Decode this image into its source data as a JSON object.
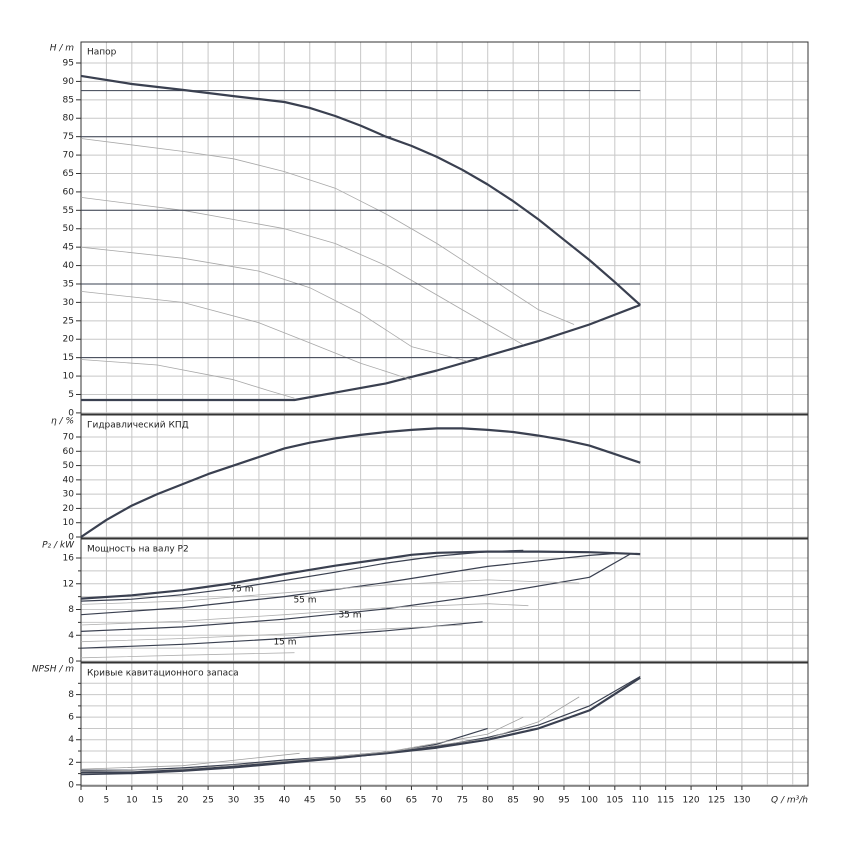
{
  "chart_data": [
    {
      "type": "line",
      "ylabel": "H / m",
      "title": "Напор",
      "ylim": [
        -0.3,
        100.7
      ],
      "yticks": [
        0,
        5,
        10,
        15,
        20,
        25,
        30,
        35,
        40,
        45,
        50,
        55,
        60,
        65,
        70,
        75,
        80,
        85,
        90,
        95
      ],
      "grid": true,
      "series": [
        {
          "style": "thick",
          "color": "#3a4050",
          "x": [
            0,
            10,
            20,
            30,
            40,
            45,
            50,
            55,
            60,
            65,
            70,
            75,
            80,
            85,
            90,
            95,
            100,
            105,
            110
          ],
          "values": [
            91.5,
            89.3,
            87.7,
            86,
            84.4,
            82.8,
            80.6,
            78,
            75,
            72.5,
            69.5,
            66,
            62,
            57.5,
            52.5,
            47,
            41.5,
            35.5,
            29.3
          ]
        },
        {
          "style": "thick",
          "color": "#3a4050",
          "x": [
            0,
            42,
            50,
            60,
            70,
            80,
            90,
            100,
            110
          ],
          "values": [
            3.5,
            3.5,
            5.5,
            8,
            11.5,
            15.5,
            19.5,
            24,
            29.3
          ]
        },
        {
          "style": "thin",
          "color": "#a8a8a8",
          "x": [
            0,
            20,
            30,
            40,
            50,
            60,
            70,
            80,
            90,
            97
          ],
          "values": [
            74.5,
            71,
            69,
            65.5,
            61,
            54,
            46,
            37,
            28,
            24
          ]
        },
        {
          "style": "thin",
          "color": "#a8a8a8",
          "x": [
            0,
            20,
            40,
            50,
            60,
            70,
            80,
            87
          ],
          "values": [
            58.5,
            55,
            50,
            46,
            40,
            32,
            24,
            18.5
          ]
        },
        {
          "style": "thin",
          "color": "#a8a8a8",
          "x": [
            0,
            20,
            35,
            45,
            55,
            65,
            76
          ],
          "values": [
            45,
            42,
            38.5,
            34,
            27,
            18,
            14
          ]
        },
        {
          "style": "thin",
          "color": "#a8a8a8",
          "x": [
            0,
            20,
            35,
            45,
            55,
            65
          ],
          "values": [
            33,
            30,
            24.5,
            19,
            13.5,
            9
          ]
        },
        {
          "style": "thin",
          "color": "#a8a8a8",
          "x": [
            0,
            15,
            30,
            37,
            42
          ],
          "values": [
            14.5,
            13,
            9,
            6,
            4
          ]
        },
        {
          "style": "rule",
          "color": "#3a4050",
          "x": [
            0,
            78
          ],
          "values": [
            15,
            15
          ]
        },
        {
          "style": "rule",
          "color": "#3a4050",
          "x": [
            0,
            110
          ],
          "values": [
            35,
            35
          ]
        },
        {
          "style": "rule",
          "color": "#3a4050",
          "x": [
            0,
            86
          ],
          "values": [
            55,
            55
          ]
        },
        {
          "style": "rule",
          "color": "#3a4050",
          "x": [
            0,
            61
          ],
          "values": [
            75,
            75
          ]
        },
        {
          "style": "rule",
          "color": "#3a4050",
          "x": [
            0,
            110
          ],
          "values": [
            87.5,
            87.5
          ]
        }
      ]
    },
    {
      "type": "line",
      "ylabel": "η / %",
      "title": "Гидравлический КПД",
      "ylim": [
        -0.7,
        85.4
      ],
      "yticks": [
        0,
        10,
        20,
        30,
        40,
        50,
        60,
        70
      ],
      "grid": true,
      "series": [
        {
          "style": "thick",
          "color": "#3a4050",
          "x": [
            0,
            5,
            10,
            15,
            20,
            25,
            30,
            35,
            40,
            45,
            50,
            55,
            60,
            65,
            70,
            75,
            80,
            85,
            90,
            95,
            100,
            105,
            110
          ],
          "values": [
            0,
            12,
            22,
            30,
            37,
            44,
            50,
            56,
            62,
            66,
            69,
            71.5,
            73.5,
            75,
            76,
            76,
            75,
            73.5,
            71,
            68,
            64,
            58,
            52
          ]
        }
      ]
    },
    {
      "type": "line",
      "ylabel": "P₂ / kW",
      "title": "Мощность на валу P2",
      "ylim": [
        -0.15,
        18.95
      ],
      "yticks": [
        0,
        4,
        8,
        12,
        16
      ],
      "yminorticks": [
        2,
        6,
        10,
        14
      ],
      "grid": true,
      "annotations": [
        "75 m",
        "55 m",
        "35 m",
        "15 m"
      ],
      "series": [
        {
          "style": "thick",
          "color": "#3a4050",
          "x": [
            0,
            10,
            20,
            30,
            40,
            50,
            60,
            65,
            70,
            80,
            90,
            100,
            110
          ],
          "values": [
            9.7,
            10.2,
            11,
            12.1,
            13.5,
            14.8,
            15.9,
            16.5,
            16.8,
            17,
            17,
            16.9,
            16.6
          ]
        },
        {
          "style": "mid",
          "color": "#3a4050",
          "x": [
            0,
            10,
            20,
            30,
            40,
            50,
            60,
            70,
            80,
            87
          ],
          "values": [
            9.3,
            9.6,
            10.3,
            11.3,
            12.5,
            13.8,
            15.2,
            16.3,
            17,
            17.2
          ]
        },
        {
          "style": "mid",
          "color": "#3a4050",
          "x": [
            0,
            20,
            40,
            60,
            80,
            100,
            105
          ],
          "values": [
            7.2,
            8.3,
            10,
            12.2,
            14.7,
            16.4,
            16.7
          ]
        },
        {
          "style": "mid",
          "color": "#3a4050",
          "x": [
            0,
            20,
            40,
            60,
            80,
            100,
            108
          ],
          "values": [
            4.6,
            5.3,
            6.5,
            8.1,
            10.3,
            13,
            16.6
          ]
        },
        {
          "style": "mid",
          "color": "#3a4050",
          "x": [
            0,
            20,
            40,
            60,
            75,
            79
          ],
          "values": [
            2,
            2.6,
            3.5,
            4.7,
            5.8,
            6.1
          ]
        },
        {
          "style": "thin",
          "color": "#b0b0b0",
          "x": [
            0,
            20,
            40,
            60,
            80,
            98
          ],
          "values": [
            8.8,
            9.3,
            10.6,
            11.8,
            12.6,
            12.1
          ]
        },
        {
          "style": "thin",
          "color": "#b0b0b0",
          "x": [
            0,
            20,
            40,
            60,
            80,
            88
          ],
          "values": [
            5.6,
            6.2,
            7.2,
            8.3,
            8.9,
            8.6
          ]
        },
        {
          "style": "thin",
          "color": "#b0b0b0",
          "x": [
            0,
            20,
            40,
            60,
            75
          ],
          "values": [
            3,
            3.5,
            4.2,
            5,
            5.6
          ]
        },
        {
          "style": "thin",
          "color": "#b0b0b0",
          "x": [
            0,
            20,
            42
          ],
          "values": [
            0.5,
            0.9,
            1.3
          ]
        }
      ]
    },
    {
      "type": "line",
      "ylabel": "NPSH / m",
      "title": "Кривые кавитационного запаса",
      "xlabel": "Q / m³/h",
      "xlim": [
        0,
        143
      ],
      "xticks": [
        0,
        5,
        10,
        15,
        20,
        25,
        30,
        35,
        40,
        45,
        50,
        55,
        60,
        65,
        70,
        75,
        80,
        85,
        90,
        95,
        100,
        105,
        110,
        115,
        120,
        125,
        130
      ],
      "xminorticks": [
        135,
        140
      ],
      "ylim": [
        -0.1,
        10.8
      ],
      "yticks": [
        0,
        2,
        4,
        6,
        8
      ],
      "yminorticks": [
        1,
        3,
        5,
        7,
        9
      ],
      "grid": true,
      "series": [
        {
          "style": "thick",
          "color": "#3a4050",
          "x": [
            0,
            10,
            20,
            30,
            40,
            50,
            60,
            70,
            80,
            90,
            100,
            110
          ],
          "values": [
            1.1,
            1.1,
            1.3,
            1.6,
            2,
            2.4,
            2.8,
            3.3,
            4,
            5,
            6.6,
            9.5
          ]
        },
        {
          "style": "mid",
          "color": "#3a4050",
          "x": [
            0,
            10,
            20,
            30,
            40,
            50,
            60,
            70,
            80,
            90,
            100,
            110
          ],
          "values": [
            1.3,
            1.3,
            1.5,
            1.8,
            2.2,
            2.5,
            2.9,
            3.4,
            4.2,
            5.3,
            7,
            9.6
          ]
        },
        {
          "style": "mid",
          "color": "#3a4050",
          "x": [
            0,
            10,
            20,
            30,
            40,
            50,
            60,
            70,
            80
          ],
          "values": [
            0.9,
            1,
            1.2,
            1.5,
            1.9,
            2.3,
            2.8,
            3.6,
            5
          ]
        },
        {
          "style": "thin",
          "color": "#a0a0a0",
          "x": [
            0,
            20,
            40,
            60,
            80,
            87
          ],
          "values": [
            1.2,
            1.4,
            2.1,
            2.9,
            4.5,
            6
          ]
        },
        {
          "style": "thin",
          "color": "#a0a0a0",
          "x": [
            0,
            20,
            43
          ],
          "values": [
            1.4,
            1.7,
            2.8
          ]
        },
        {
          "style": "thin",
          "color": "#a0a0a0",
          "x": [
            60,
            80,
            90,
            98
          ],
          "values": [
            2.9,
            4.1,
            5.6,
            7.8
          ]
        }
      ]
    }
  ]
}
